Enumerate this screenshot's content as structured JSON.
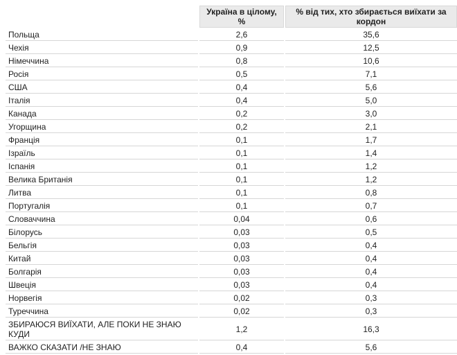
{
  "table": {
    "headers": {
      "country": "",
      "ukraine_total": "Україна в цілому, %",
      "share_of_leavers": "% від тих, хто збирається виїхати за кордон"
    },
    "rows": [
      {
        "country": "Польща",
        "ukraine_total": "2,6",
        "share_of_leavers": "35,6"
      },
      {
        "country": "Чехія",
        "ukraine_total": "0,9",
        "share_of_leavers": "12,5"
      },
      {
        "country": "Німеччина",
        "ukraine_total": "0,8",
        "share_of_leavers": "10,6"
      },
      {
        "country": "Росія",
        "ukraine_total": "0,5",
        "share_of_leavers": "7,1"
      },
      {
        "country": "США",
        "ukraine_total": "0,4",
        "share_of_leavers": "5,6"
      },
      {
        "country": "Італія",
        "ukraine_total": "0,4",
        "share_of_leavers": "5,0"
      },
      {
        "country": "Канада",
        "ukraine_total": "0,2",
        "share_of_leavers": "3,0"
      },
      {
        "country": "Угорщина",
        "ukraine_total": "0,2",
        "share_of_leavers": "2,1"
      },
      {
        "country": "Франція",
        "ukraine_total": "0,1",
        "share_of_leavers": "1,7"
      },
      {
        "country": "Ізраїль",
        "ukraine_total": "0,1",
        "share_of_leavers": "1,4"
      },
      {
        "country": "Іспанія",
        "ukraine_total": "0,1",
        "share_of_leavers": "1,2"
      },
      {
        "country": "Велика Британія",
        "ukraine_total": "0,1",
        "share_of_leavers": "1,2"
      },
      {
        "country": "Литва",
        "ukraine_total": "0,1",
        "share_of_leavers": "0,8"
      },
      {
        "country": "Португалія",
        "ukraine_total": "0,1",
        "share_of_leavers": "0,7"
      },
      {
        "country": "Словаччина",
        "ukraine_total": "0,04",
        "share_of_leavers": "0,6"
      },
      {
        "country": "Білорусь",
        "ukraine_total": "0,03",
        "share_of_leavers": "0,5"
      },
      {
        "country": "Бельгія",
        "ukraine_total": "0,03",
        "share_of_leavers": "0,4"
      },
      {
        "country": "Китай",
        "ukraine_total": "0,03",
        "share_of_leavers": "0,4"
      },
      {
        "country": "Болгарія",
        "ukraine_total": "0,03",
        "share_of_leavers": "0,4"
      },
      {
        "country": "Швеція",
        "ukraine_total": "0,03",
        "share_of_leavers": "0,4"
      },
      {
        "country": "Норвегія",
        "ukraine_total": "0,02",
        "share_of_leavers": "0,3"
      },
      {
        "country": "Туреччина",
        "ukraine_total": "0,02",
        "share_of_leavers": "0,3"
      },
      {
        "country": "ЗБИРАЮСЯ ВИЇХАТИ, АЛЕ ПОКИ НЕ ЗНАЮ КУДИ",
        "ukraine_total": "1,2",
        "share_of_leavers": "16,3"
      },
      {
        "country": "ВАЖКО СКАЗАТИ /НЕ ЗНАЮ",
        "ukraine_total": "0,4",
        "share_of_leavers": "5,6"
      }
    ]
  },
  "colors": {
    "header_bg": "#eaeaea",
    "row_border": "#d6d6d6",
    "text": "#222222"
  }
}
